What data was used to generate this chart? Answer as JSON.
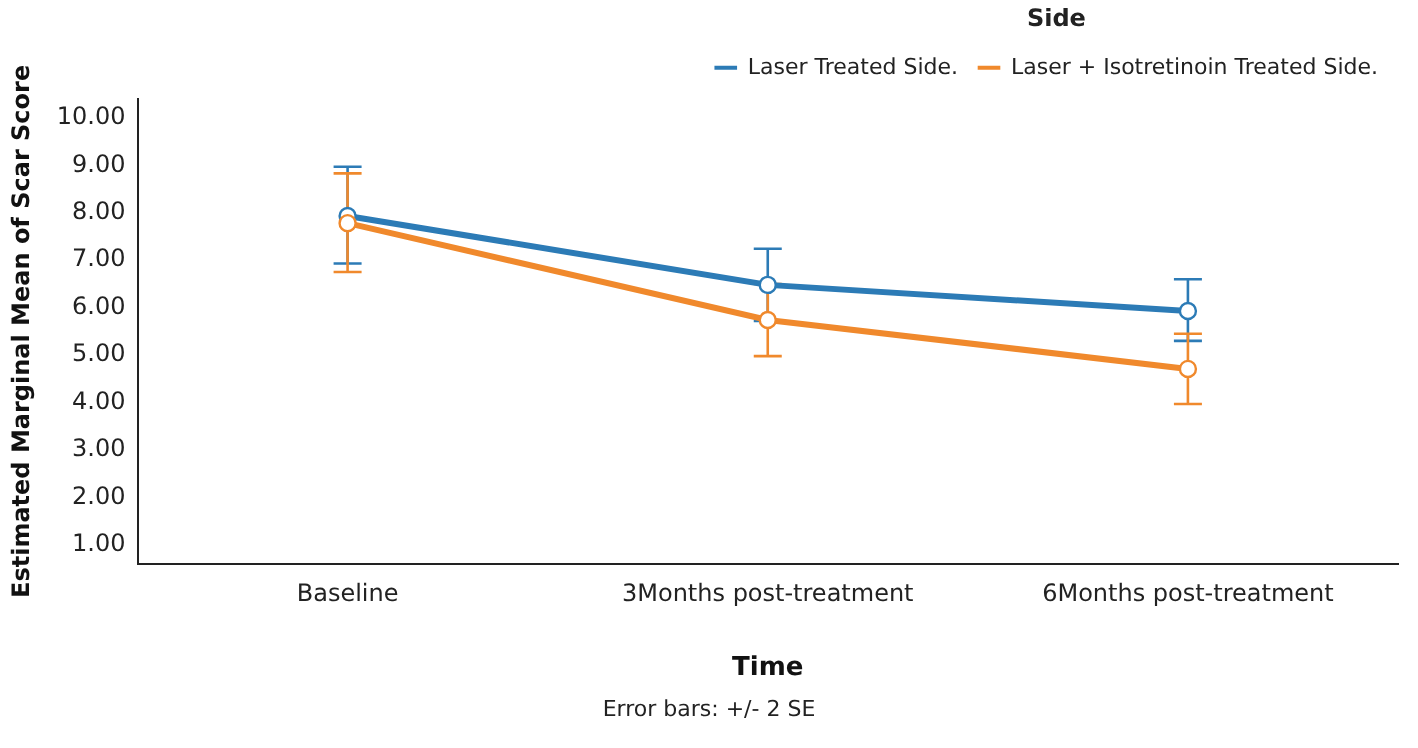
{
  "chart_data": {
    "type": "line",
    "xlabel": "Time",
    "ylabel": "Estimated Marginal Mean of Scar Score",
    "legend_title": "Side",
    "categories": [
      "Baseline",
      "3Months post-treatment",
      "6Months post-treatment"
    ],
    "series": [
      {
        "name": "Laser Treated Side.",
        "color": "#2c7bb6",
        "values": [
          7.93,
          6.48,
          5.93
        ],
        "errors": [
          [
            6.93,
            8.97
          ],
          [
            5.72,
            7.24
          ],
          [
            5.3,
            6.6
          ]
        ]
      },
      {
        "name": "Laser + Isotretinoin Treated Side.",
        "color": "#f0892c",
        "values": [
          7.78,
          5.74,
          4.71
        ],
        "errors": [
          [
            6.75,
            8.83
          ],
          [
            4.98,
            6.5
          ],
          [
            3.97,
            5.45
          ]
        ]
      }
    ],
    "ylim": [
      0.6,
      10.4
    ],
    "yticks": [
      {
        "value": 1,
        "label": "1.00"
      },
      {
        "value": 2,
        "label": "2.00"
      },
      {
        "value": 3,
        "label": "3.00"
      },
      {
        "value": 4,
        "label": "4.00"
      },
      {
        "value": 5,
        "label": "5.00"
      },
      {
        "value": 6,
        "label": "6.00"
      },
      {
        "value": 7,
        "label": "7.00"
      },
      {
        "value": 8,
        "label": "8.00"
      },
      {
        "value": 9,
        "label": "9.00"
      },
      {
        "value": 10,
        "label": "10.00"
      }
    ],
    "grid": false,
    "legend": "top right",
    "marker": "circle",
    "line_style": "solid",
    "annotations": [
      "Error bars: +/- 2 SE"
    ]
  }
}
